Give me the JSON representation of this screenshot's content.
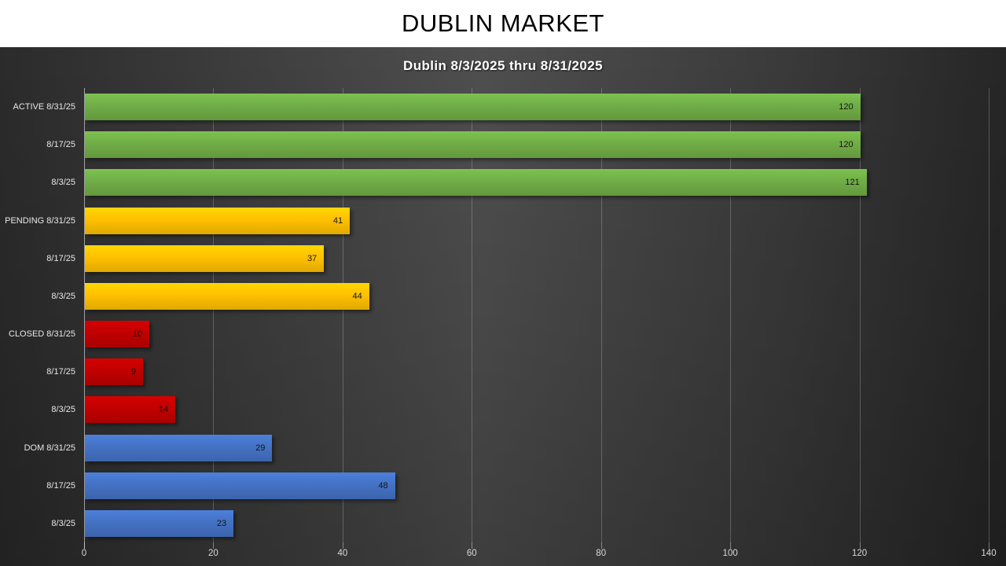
{
  "header": {
    "title": "DUBLIN MARKET"
  },
  "chart": {
    "subtitle": "Dublin 8/3/2025 thru 8/31/2025"
  },
  "chart_data": {
    "type": "bar",
    "orientation": "horizontal",
    "title": "DUBLIN MARKET",
    "subtitle": "Dublin 8/3/2025 thru 8/31/2025",
    "categories": [
      "ACTIVE 8/31/25",
      "8/17/25",
      "8/3/25",
      "PENDING 8/31/25",
      "8/17/25",
      "8/3/25",
      "CLOSED 8/31/25",
      "8/17/25",
      "8/3/25",
      "DOM 8/31/25",
      "8/17/25",
      "8/3/25"
    ],
    "values": [
      120,
      120,
      121,
      41,
      37,
      44,
      10,
      9,
      14,
      29,
      48,
      23
    ],
    "bar_colors": [
      "#70AD47",
      "#70AD47",
      "#70AD47",
      "#FFC000",
      "#FFC000",
      "#FFC000",
      "#C00000",
      "#C00000",
      "#C00000",
      "#4472C4",
      "#4472C4",
      "#4472C4"
    ],
    "groups": [
      {
        "name": "ACTIVE",
        "color": "#70AD47",
        "values": [
          120,
          120,
          121
        ]
      },
      {
        "name": "PENDING",
        "color": "#FFC000",
        "values": [
          41,
          37,
          44
        ]
      },
      {
        "name": "CLOSED",
        "color": "#C00000",
        "values": [
          10,
          9,
          14
        ]
      },
      {
        "name": "DOM",
        "color": "#4472C4",
        "values": [
          29,
          48,
          23
        ]
      }
    ],
    "xlim": [
      0,
      140
    ],
    "xticks": [
      0,
      20,
      40,
      60,
      80,
      100,
      120,
      140
    ],
    "grid": true,
    "legend": false,
    "value_labels": "inside-end"
  }
}
